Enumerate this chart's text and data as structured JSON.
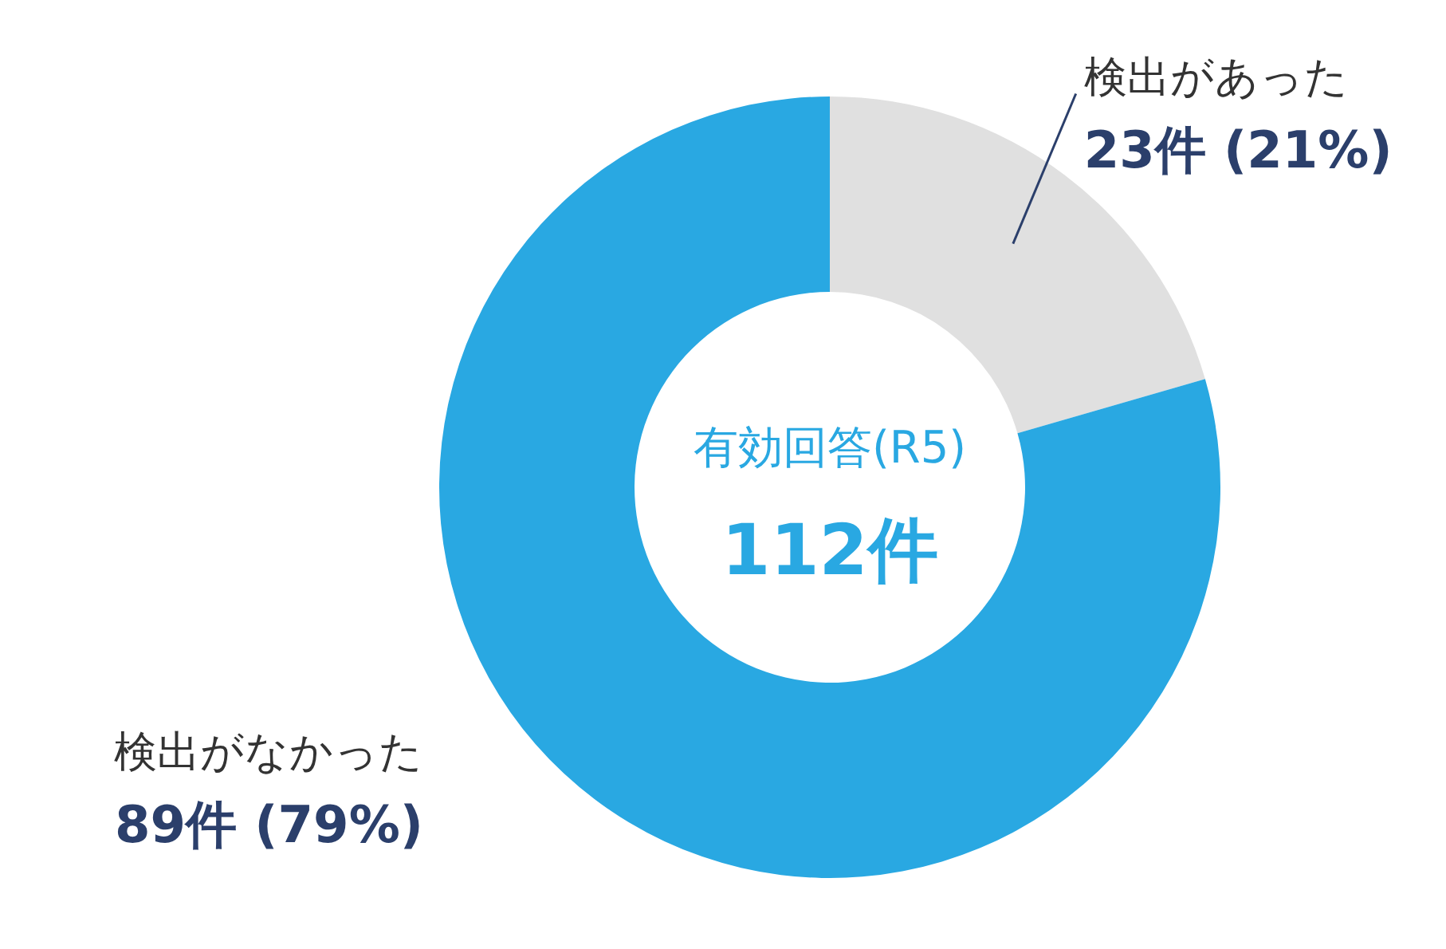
{
  "chart_data": {
    "type": "donut",
    "categories": [
      "検出があった",
      "検出がなかった"
    ],
    "values": [
      23,
      89
    ],
    "colors": [
      "#e0e0e0",
      "#29a8e2"
    ],
    "value_labels": [
      "23件 (21%)",
      "89件 (79%)"
    ],
    "annotations": [
      "有効回答(R5)",
      "112件"
    ]
  }
}
